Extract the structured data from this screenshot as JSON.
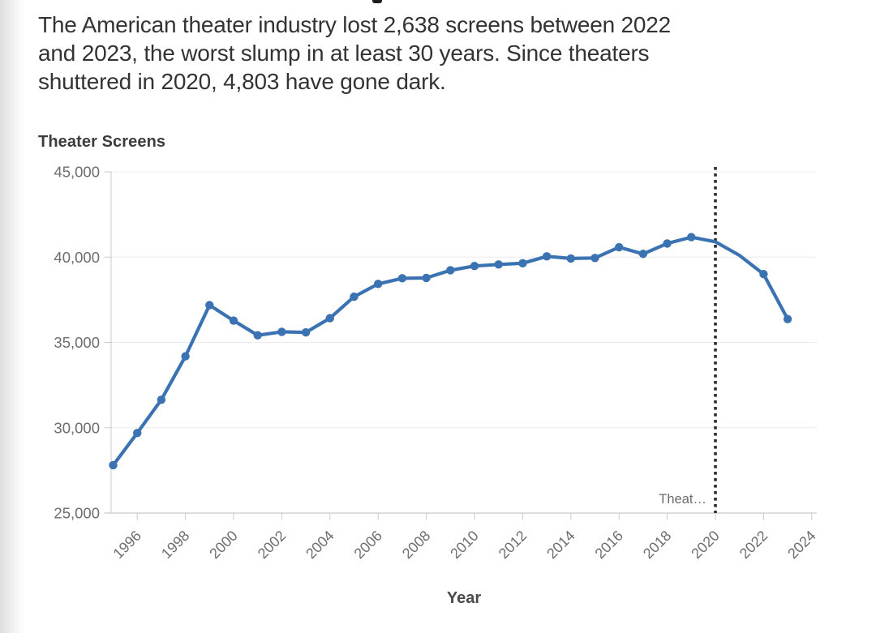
{
  "intro": {
    "lines": [
      "The American theater industry lost 2,638 screens between 2022",
      "and 2023, the worst slump in at least 30 years. Since theaters",
      "shuttered in 2020, 4,803 have gone dark."
    ]
  },
  "chart": {
    "title": "Theater Screens"
  },
  "chart_data": {
    "type": "line",
    "title": "Theater Screens",
    "xlabel": "Year",
    "ylabel": "",
    "x": [
      1995,
      1996,
      1997,
      1998,
      1999,
      2000,
      2001,
      2002,
      2003,
      2004,
      2005,
      2006,
      2007,
      2008,
      2009,
      2010,
      2011,
      2012,
      2013,
      2014,
      2015,
      2016,
      2017,
      2018,
      2019,
      2020,
      2021,
      2022,
      2023
    ],
    "values": [
      27805,
      29690,
      31640,
      34186,
      37185,
      36280,
      35420,
      35620,
      35590,
      36420,
      37680,
      38430,
      38760,
      38780,
      39230,
      39480,
      39570,
      39640,
      40045,
      39920,
      39950,
      40580,
      40190,
      40800,
      41172,
      40900,
      40100,
      39007,
      36369
    ],
    "ylim": [
      25000,
      45000
    ],
    "y_ticks": [
      25000,
      30000,
      35000,
      40000,
      45000
    ],
    "x_ticks": [
      1996,
      1998,
      2000,
      2002,
      2004,
      2006,
      2008,
      2010,
      2012,
      2014,
      2016,
      2018,
      2020,
      2022,
      2024
    ],
    "grid": "horizontal",
    "legend": "none",
    "line_color": "#3b73b2",
    "marker_color": "#3b73b2",
    "hidden_marker_years": [
      2020,
      2021
    ],
    "annotation_line": {
      "x": 2020,
      "style": "dotted",
      "color": "#2d2d2d",
      "label": "Theat…"
    }
  }
}
